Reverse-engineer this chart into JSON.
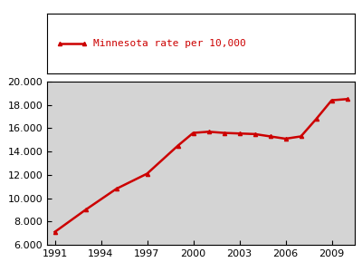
{
  "x": [
    1991,
    1993,
    1995,
    1997,
    1999,
    2000,
    2001,
    2002,
    2003,
    2004,
    2005,
    2006,
    2007,
    2008,
    2009,
    2010
  ],
  "y": [
    7100,
    9000,
    10800,
    12100,
    14500,
    15600,
    15700,
    15600,
    15550,
    15500,
    15300,
    15100,
    15300,
    16800,
    18400,
    18500
  ],
  "line_color": "#cc0000",
  "marker": "^",
  "marker_size": 3,
  "line_width": 1.8,
  "legend_label": "Minnesota rate per 10,000",
  "xlim": [
    1990.5,
    2010.5
  ],
  "ylim": [
    6000,
    20000
  ],
  "xticks": [
    1991,
    1994,
    1997,
    2000,
    2003,
    2006,
    2009
  ],
  "yticks": [
    6000,
    8000,
    10000,
    12000,
    14000,
    16000,
    18000,
    20000
  ],
  "plot_bg_color": "#d4d4d4",
  "fig_bg_color": "#ffffff",
  "legend_fontsize": 8,
  "tick_fontsize": 8,
  "legend_box_color": "#ffffff",
  "legend_border_color": "#000000"
}
